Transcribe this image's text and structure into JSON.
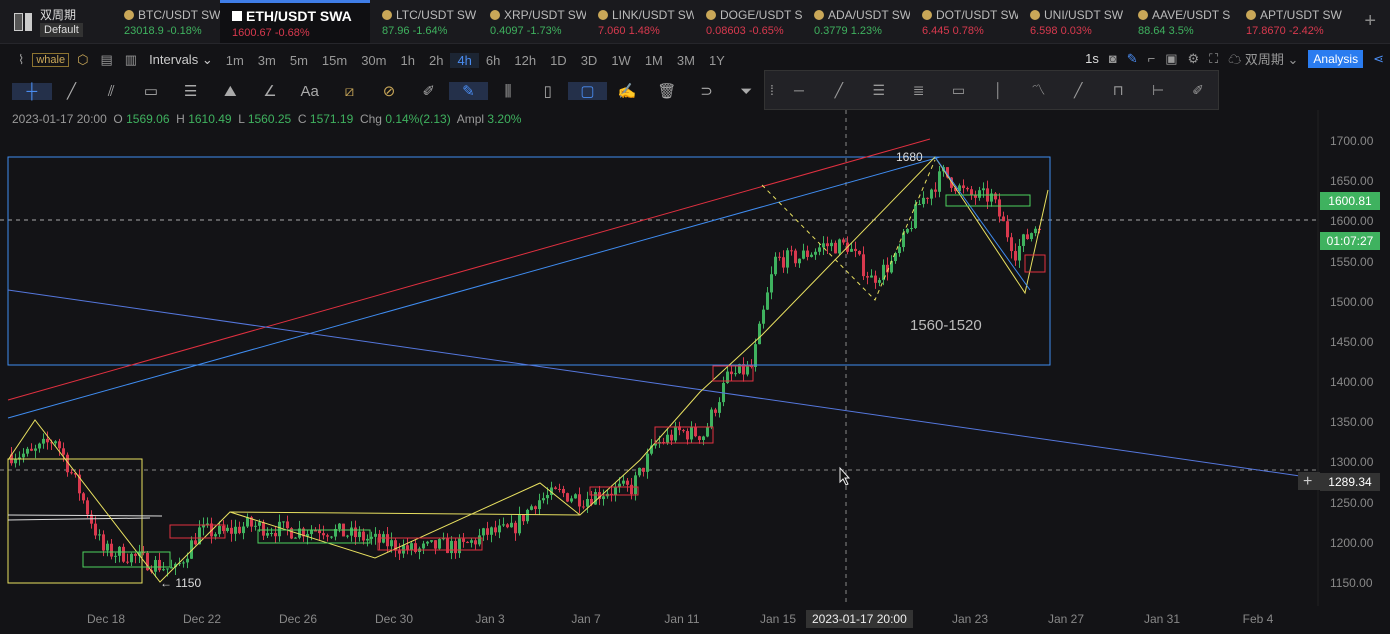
{
  "app": {
    "name": "双周期",
    "layout": "Default"
  },
  "tabs": [
    {
      "symbol": "BTC/USDT SW",
      "price": "23018.9",
      "change": "-0.18%",
      "dir": "up"
    },
    {
      "symbol": "ETH/USDT SWA",
      "price": "1600.67",
      "change": "-0.68%",
      "dir": "dn",
      "active": true
    },
    {
      "symbol": "LTC/USDT SW",
      "price": "87.96",
      "change": "-1.64%",
      "dir": "up"
    },
    {
      "symbol": "XRP/USDT SW",
      "price": "0.4097",
      "change": "-1.73%",
      "dir": "up"
    },
    {
      "symbol": "LINK/USDT SW",
      "price": "7.060",
      "change": "1.48%",
      "dir": "dn"
    },
    {
      "symbol": "DOGE/USDT S",
      "price": "0.08603",
      "change": "-0.65%",
      "dir": "dn"
    },
    {
      "symbol": "ADA/USDT SW",
      "price": "0.3779",
      "change": "1.23%",
      "dir": "up"
    },
    {
      "symbol": "DOT/USDT SW",
      "price": "6.445",
      "change": "0.78%",
      "dir": "dn"
    },
    {
      "symbol": "UNI/USDT SW",
      "price": "6.598",
      "change": "0.03%",
      "dir": "dn"
    },
    {
      "symbol": "AAVE/USDT S",
      "price": "88.64",
      "change": "3.5%",
      "dir": "up"
    },
    {
      "symbol": "APT/USDT SW",
      "price": "17.8670",
      "change": "-2.42%",
      "dir": "dn"
    }
  ],
  "toolbar": {
    "indicator": "whale",
    "intervals_label": "Intervals",
    "intervals": [
      "1m",
      "3m",
      "5m",
      "15m",
      "30m",
      "1h",
      "2h",
      "4h",
      "6h",
      "12h",
      "1D",
      "3D",
      "1W",
      "1M",
      "3M",
      "1Y"
    ],
    "active_interval": "4h",
    "refresh": "1s",
    "template": "双周期",
    "analysis": "Analysis"
  },
  "ohlc": {
    "time": "2023-01-17 20:00",
    "o_label": "O",
    "o": "1569.06",
    "h_label": "H",
    "h": "1610.49",
    "l_label": "L",
    "l": "1560.25",
    "c_label": "C",
    "c": "1571.19",
    "chg_label": "Chg",
    "chg": "0.14%(2.13)",
    "ampl_label": "Ampl",
    "ampl": "3.20%"
  },
  "colors": {
    "up": "#3fb25f",
    "down": "#d8394e",
    "accent": "#2a7cf0"
  },
  "annotations": {
    "high": "1680",
    "range": "1560-1520",
    "low": "← 1150"
  },
  "crosshair": {
    "time": "2023-01-17 20:00",
    "price": "1289.34"
  },
  "last_price": {
    "price": "1600.81",
    "countdown": "01:07:27"
  },
  "chart_data": {
    "type": "candlestick",
    "interval": "4h",
    "symbol": "ETH/USDT",
    "y_ticks": [
      "1700.00",
      "1650.00",
      "1600.00",
      "1550.00",
      "1500.00",
      "1450.00",
      "1400.00",
      "1350.00",
      "1300.00",
      "1250.00",
      "1200.00",
      "1150.00"
    ],
    "x_ticks": [
      "Dec 18",
      "Dec 22",
      "Dec 26",
      "Dec 30",
      "Jan 3",
      "Jan 7",
      "Jan 11",
      "Jan 15",
      "Jan 23",
      "Jan 27",
      "Jan 31",
      "Feb 4"
    ],
    "ylim": [
      1100,
      1740
    ],
    "daily_close_approx": {
      "dates": [
        "Dec 14",
        "Dec 15",
        "Dec 16",
        "Dec 17",
        "Dec 18",
        "Dec 19",
        "Dec 20",
        "Dec 21",
        "Dec 22",
        "Dec 23",
        "Dec 24",
        "Dec 25",
        "Dec 26",
        "Dec 27",
        "Dec 28",
        "Dec 29",
        "Dec 30",
        "Dec 31",
        "Jan 1",
        "Jan 2",
        "Jan 3",
        "Jan 4",
        "Jan 5",
        "Jan 6",
        "Jan 7",
        "Jan 8",
        "Jan 9",
        "Jan 10",
        "Jan 11",
        "Jan 12",
        "Jan 13",
        "Jan 14",
        "Jan 15",
        "Jan 16",
        "Jan 17",
        "Jan 18",
        "Jan 19",
        "Jan 20",
        "Jan 21",
        "Jan 22",
        "Jan 23",
        "Jan 24",
        "Jan 25"
      ],
      "values": [
        1310,
        1330,
        1265,
        1190,
        1185,
        1175,
        1165,
        1215,
        1212,
        1222,
        1218,
        1215,
        1218,
        1212,
        1205,
        1198,
        1190,
        1196,
        1195,
        1212,
        1215,
        1252,
        1262,
        1255,
        1265,
        1268,
        1322,
        1338,
        1335,
        1405,
        1418,
        1552,
        1555,
        1570,
        1570,
        1528,
        1552,
        1622,
        1660,
        1632,
        1630,
        1562,
        1600
      ]
    }
  }
}
